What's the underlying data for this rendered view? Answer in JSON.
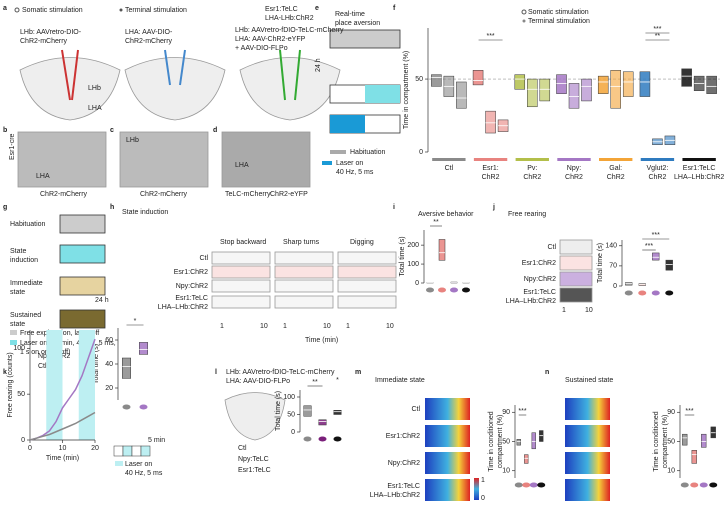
{
  "panels": {
    "a": {
      "letter": "a",
      "somatic": "Somatic stimulation",
      "terminal": "Terminal stimulation",
      "telc": [
        "Esr1:TeLC",
        "LHA-LHb:ChR2"
      ],
      "virus1": [
        "LHb: AAVretro-DIO-",
        "ChR2-mCherry"
      ],
      "virus2": [
        "LHA: AAV-DIO-",
        "ChR2-mCherry"
      ],
      "virus3": [
        "LHb: AAVretro-fDIO-TeLC-mCherry",
        "LHA: AAV-ChR2-eYFP",
        "+ AAV-DIO-FLPo"
      ],
      "regions": [
        "LHb",
        "LHA"
      ]
    },
    "b": {
      "letter": "b",
      "line": "Esr1-cre",
      "region": "LHA",
      "stain": "ChR2-mCherry"
    },
    "c": {
      "letter": "c",
      "region": "LHb",
      "stain": "ChR2-mCherry"
    },
    "d": {
      "letter": "d",
      "region": "LHA",
      "stains": [
        "TeLC-mCherry",
        "ChR2-eYFP"
      ]
    },
    "e": {
      "letter": "e",
      "title": [
        "Real-time",
        "place aversion"
      ],
      "interval": "24 h",
      "habituation": "Habituation",
      "laser": [
        "Laser on",
        "40 Hz, 5 ms"
      ]
    },
    "f": {
      "letter": "f",
      "type": "box",
      "ylabel": "Time in compartment (%)",
      "legend": [
        "Somatic stimulation",
        "Terminal stimulation"
      ],
      "ylim": [
        0,
        85
      ],
      "yticks": [
        0,
        50
      ],
      "reference": 50,
      "groups": [
        {
          "name": [
            "Ctl"
          ],
          "color": "#8a8a8a",
          "boxes": [
            [
              45,
              51,
              53
            ],
            [
              38,
              45,
              52
            ],
            [
              30,
              37,
              48
            ]
          ]
        },
        {
          "name": [
            "Esr1:",
            "ChR2"
          ],
          "color": "#e8837f",
          "boxes": [
            [
              46,
              49,
              56
            ],
            [
              13,
              20,
              28
            ],
            [
              14,
              18,
              22
            ]
          ]
        },
        {
          "name": [
            "Pv:",
            "ChR2"
          ],
          "color": "#b3bf4a",
          "boxes": [
            [
              43,
              50,
              53
            ],
            [
              31,
              43,
              50
            ],
            [
              35,
              43,
              50
            ]
          ]
        },
        {
          "name": [
            "Npy:",
            "ChR2"
          ],
          "color": "#a477c4",
          "boxes": [
            [
              40,
              47,
              53
            ],
            [
              30,
              38,
              47
            ],
            [
              35,
              45,
              50
            ]
          ]
        },
        {
          "name": [
            "Gal:",
            "ChR2"
          ],
          "color": "#f3a437",
          "boxes": [
            [
              40,
              48,
              52
            ],
            [
              30,
              45,
              56
            ],
            [
              38,
              48,
              55
            ]
          ]
        },
        {
          "name": [
            "Vglut2:",
            "ChR2"
          ],
          "color": "#2f7bbf",
          "boxes": [
            [
              38,
              48,
              55
            ],
            [
              5,
              7,
              9
            ],
            [
              5,
              8,
              11
            ]
          ]
        },
        {
          "name": [
            "Esr1:TeLC",
            "LHA–LHb:ChR2"
          ],
          "color": "#111111",
          "boxes": [
            [
              45,
              52,
              57
            ],
            [
              42,
              47,
              52
            ],
            [
              40,
              45,
              52
            ]
          ]
        }
      ],
      "significance": [
        "***",
        "**",
        "***"
      ]
    },
    "g": {
      "letter": "g",
      "steps": [
        [
          "Habituation"
        ],
        [
          "State",
          "induction"
        ],
        [
          "Immediate",
          "state"
        ],
        [
          "Sustained",
          "state"
        ]
      ],
      "interval": "24 h",
      "legend": [
        "Free exploration, laser off",
        "Laser on (10 min, 40 Hz, 5 ms,",
        "1 s on or 1 s off)"
      ]
    },
    "h": {
      "letter": "h",
      "title": "State induction",
      "behaviors": [
        "Stop backward",
        "Sharp turns",
        "Digging"
      ],
      "rows": [
        "Ctl",
        "Esr1:ChR2",
        "Npy:ChR2",
        "Esr1:TeLC",
        "LHA–LHb:ChR2"
      ],
      "xticks": [
        "1",
        "10"
      ],
      "xlabel": "Time (min)"
    },
    "i": {
      "letter": "i",
      "type": "box",
      "title": "Aversive behavior",
      "ylabel": "Total time (s)",
      "ylim": [
        0,
        280
      ],
      "yticks": [
        0,
        100,
        200
      ],
      "groups": [
        {
          "color": "#8a8a8a",
          "boxes": [
            [
              0,
              1,
              2
            ]
          ]
        },
        {
          "color": "#e8837f",
          "boxes": [
            [
              120,
              160,
              230
            ]
          ]
        },
        {
          "color": "#a477c4",
          "boxes": [
            [
              0,
              2,
              5
            ]
          ]
        },
        {
          "color": "#111111",
          "boxes": [
            [
              0,
              1,
              2
            ]
          ]
        }
      ],
      "significance": [
        "**"
      ]
    },
    "j": {
      "letter": "j",
      "type": "box",
      "title": "Free rearing",
      "rows": [
        "Ctl",
        "Esr1:ChR2",
        "Npy:ChR2",
        "Esr1:TeLC",
        "LHA–LHb:ChR2"
      ],
      "xticks": [
        "1",
        "10"
      ],
      "ylabel": "Total time (s)",
      "ylim": [
        0,
        160
      ],
      "yticks": [
        0,
        70,
        140
      ],
      "groups": [
        {
          "color": "#8a8a8a",
          "boxes": [
            [
              3,
              8,
              12
            ]
          ]
        },
        {
          "color": "#e8837f",
          "boxes": [
            [
              2,
              5,
              8
            ]
          ]
        },
        {
          "color": "#a477c4",
          "boxes": [
            [
              90,
              100,
              115
            ]
          ]
        },
        {
          "color": "#111111",
          "boxes": [
            [
              55,
              75,
              90
            ]
          ]
        }
      ],
      "significance": [
        "***",
        "***"
      ]
    },
    "k": {
      "letter": "k",
      "type": "line",
      "ylabel": "Free rearing (counts)",
      "xlabel": "Time (min)",
      "xlim": [
        0,
        20
      ],
      "xticks": [
        0,
        10,
        20
      ],
      "ylim": [
        0,
        120
      ],
      "yticks": [
        0,
        50,
        100
      ],
      "laser_periods": [
        [
          5,
          10
        ],
        [
          15,
          20
        ]
      ],
      "x": [
        0,
        2,
        4,
        6,
        8,
        10,
        12,
        14,
        16,
        18,
        20
      ],
      "series": [
        {
          "name": "Npy:ChR2",
          "color": "#a477c4",
          "values": [
            0,
            2,
            5,
            10,
            20,
            35,
            45,
            55,
            70,
            90,
            110
          ]
        },
        {
          "name": "Ctl",
          "color": "#8a8a8a",
          "values": [
            0,
            2,
            4,
            6,
            9,
            12,
            15,
            18,
            22,
            26,
            30
          ]
        }
      ],
      "box": {
        "type": "box",
        "ylabel": "Total time (s)",
        "ylim": [
          10,
          70
        ],
        "yticks": [
          20,
          40,
          60
        ],
        "groups": [
          {
            "color": "#8a8a8a",
            "boxes": [
              [
                28,
                38,
                45
              ]
            ]
          },
          {
            "color": "#a477c4",
            "boxes": [
              [
                48,
                52,
                58
              ]
            ]
          }
        ],
        "significance": [
          "*"
        ]
      },
      "scale": "5 min",
      "epochs": [
        "1",
        "2",
        "3",
        "4"
      ],
      "laser": [
        "Laser on",
        "40 Hz, 5 ms"
      ]
    },
    "l": {
      "letter": "l",
      "virus": [
        "LHb: AAVretro-fDIO-TeLC-mCherry",
        "LHA: AAV-DIO-FLPo"
      ],
      "legend": [
        "Ctl",
        "Npy:TeLC",
        "Esr1:TeLC"
      ],
      "type": "box",
      "ylabel": "Total time (s)",
      "ylim": [
        0,
        120
      ],
      "yticks": [
        0,
        50,
        100
      ],
      "groups": [
        {
          "color": "#8a8a8a",
          "boxes": [
            [
              45,
              63,
              75
            ]
          ]
        },
        {
          "color": "#7a1f7a",
          "boxes": [
            [
              20,
              30,
              35
            ]
          ]
        },
        {
          "color": "#111111",
          "boxes": [
            [
              50,
              58,
              62
            ]
          ]
        }
      ],
      "significance": [
        "**",
        "*"
      ]
    },
    "m": {
      "letter": "m",
      "title": "Immediate state",
      "rows": [
        "Ctl",
        "Esr1:ChR2",
        "Npy:ChR2",
        "Esr1:TeLC",
        "LHA–LHb:ChR2"
      ],
      "colorbar": [
        "1",
        "0"
      ],
      "type": "box",
      "ylabel": [
        "Time in conditioned",
        "compartment (%)"
      ],
      "ylim": [
        0,
        100
      ],
      "yticks": [
        10,
        50,
        90
      ],
      "groups": [
        {
          "color": "#8a8a8a",
          "boxes": [
            [
              45,
              50,
              53
            ]
          ]
        },
        {
          "color": "#e8837f",
          "boxes": [
            [
              20,
              27,
              32
            ]
          ]
        },
        {
          "color": "#a477c4",
          "boxes": [
            [
              40,
              50,
              62
            ]
          ]
        },
        {
          "color": "#111111",
          "boxes": [
            [
              50,
              58,
              65
            ]
          ]
        }
      ],
      "significance": [
        "***"
      ]
    },
    "n": {
      "letter": "n",
      "title": "Sustained state",
      "type": "box",
      "ylabel": [
        "Time in conditioned",
        "compartment (%)"
      ],
      "ylim": [
        0,
        100
      ],
      "yticks": [
        10,
        50,
        90
      ],
      "groups": [
        {
          "color": "#8a8a8a",
          "boxes": [
            [
              45,
              55,
              60
            ]
          ]
        },
        {
          "color": "#e8837f",
          "boxes": [
            [
              20,
              32,
              38
            ]
          ]
        },
        {
          "color": "#a477c4",
          "boxes": [
            [
              42,
              50,
              60
            ]
          ]
        },
        {
          "color": "#111111",
          "boxes": [
            [
              55,
              62,
              70
            ]
          ]
        }
      ],
      "significance": [
        "***"
      ]
    }
  }
}
